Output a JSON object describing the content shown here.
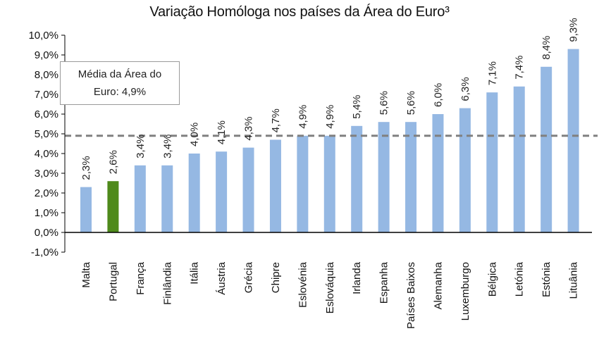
{
  "chart_data": {
    "type": "bar",
    "title": "Variação Homóloga nos países da Área do Euro³",
    "categories": [
      "Malta",
      "Portugal",
      "França",
      "Finlândia",
      "Itália",
      "Áustria",
      "Grécia",
      "Chipre",
      "Eslovénia",
      "Eslováquia",
      "Irlanda",
      "Espanha",
      "Países Baixos",
      "Alemanha",
      "Luxemburgo",
      "Bélgica",
      "Letónia",
      "Estónia",
      "Lituânia"
    ],
    "values": [
      2.3,
      2.6,
      3.4,
      3.4,
      4.0,
      4.1,
      4.3,
      4.7,
      4.9,
      4.9,
      5.4,
      5.6,
      5.6,
      6.0,
      6.3,
      7.1,
      7.4,
      8.4,
      9.3
    ],
    "data_labels": [
      "2,3%",
      "2,6%",
      "3,4%",
      "3,4%",
      "4,0%",
      "4,1%",
      "4,3%",
      "4,7%",
      "4,9%",
      "4,9%",
      "5,4%",
      "5,6%",
      "5,6%",
      "6,0%",
      "6,3%",
      "7,1%",
      "7,4%",
      "8,4%",
      "9,3%"
    ],
    "highlight_category": "Portugal",
    "ylim": [
      -1.0,
      10.0
    ],
    "yticks": [
      -1,
      0,
      1,
      2,
      3,
      4,
      5,
      6,
      7,
      8,
      9,
      10
    ],
    "ytick_labels": [
      "-1,0%",
      "0,0%",
      "1,0%",
      "2,0%",
      "3,0%",
      "4,0%",
      "5,0%",
      "6,0%",
      "7,0%",
      "8,0%",
      "9,0%",
      "10,0%"
    ],
    "reference_line": {
      "value": 4.9,
      "style": "dashed"
    },
    "annotation": {
      "line1": "Média da Área do",
      "line2": "Euro: 4,9%"
    },
    "grid": false,
    "legend": "none",
    "colors": {
      "bar": "#95b8e3",
      "highlight": "#4f8a1b",
      "reference_line": "#808080",
      "axis": "#000000"
    }
  }
}
